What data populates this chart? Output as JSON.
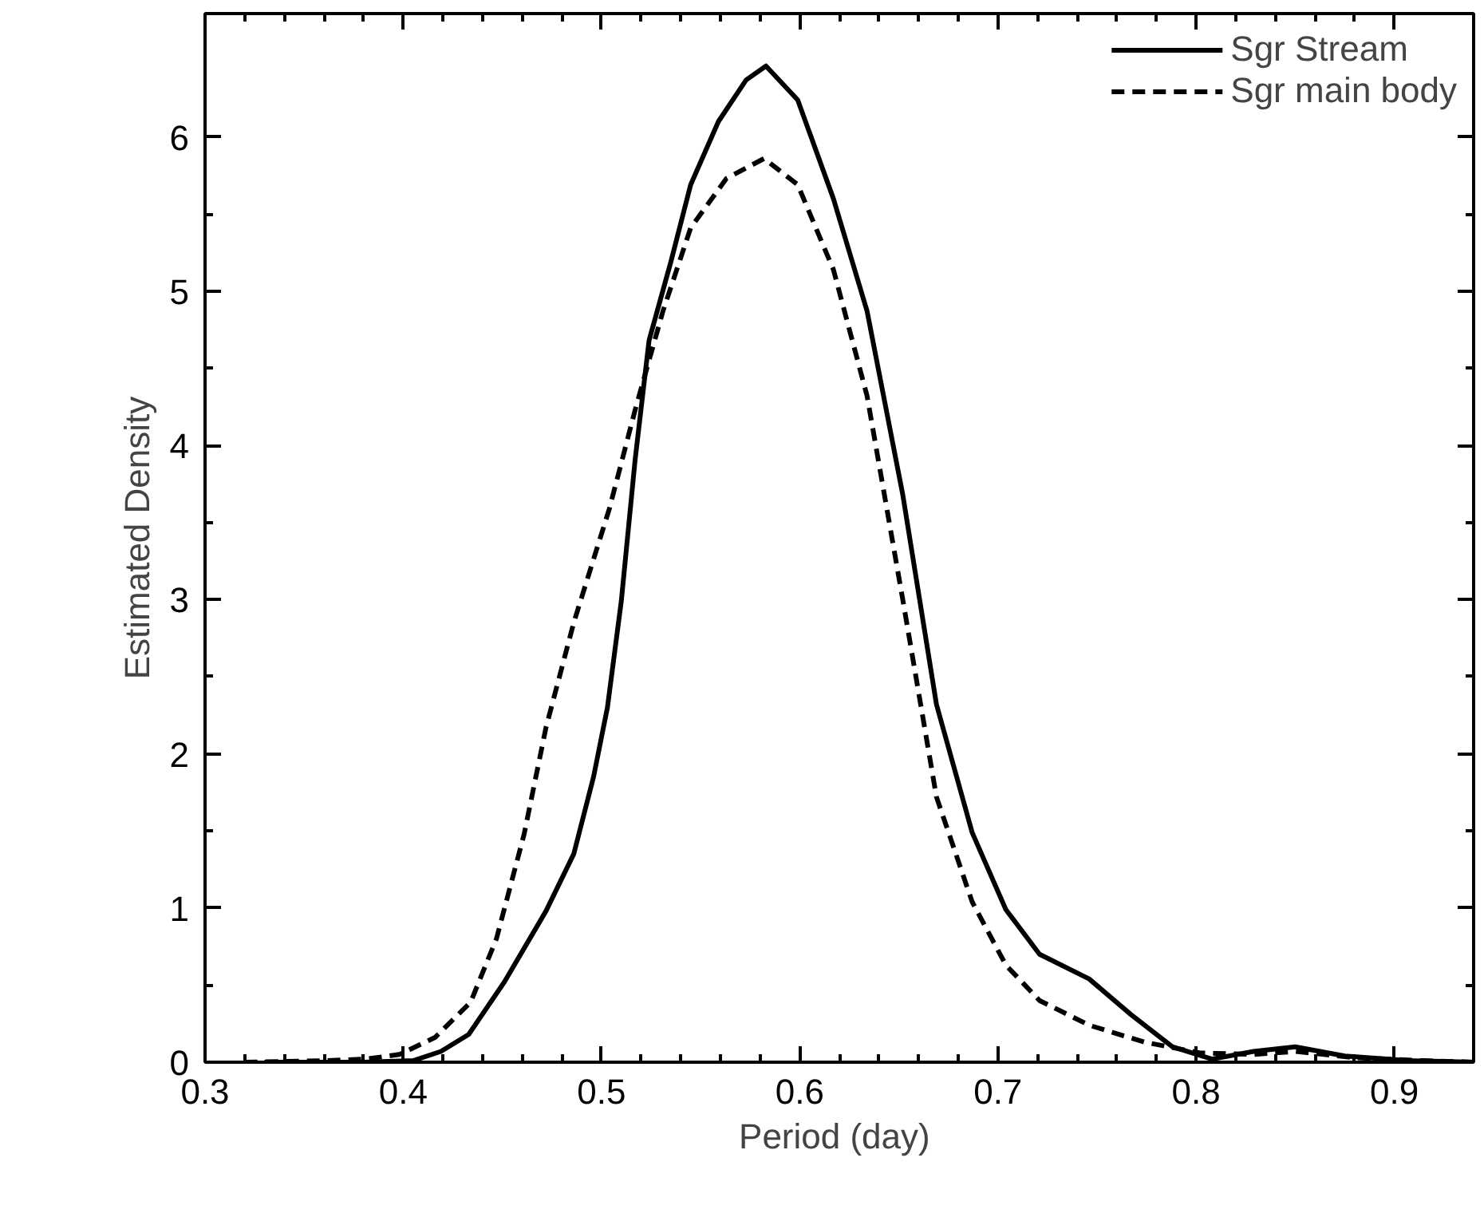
{
  "chart_data": {
    "type": "line",
    "xlabel": "Period  (day)",
    "ylabel": "Estimated Density",
    "xlim": [
      0.3,
      0.94
    ],
    "ylim": [
      0,
      6.8
    ],
    "xticks": [
      0.3,
      0.4,
      0.5,
      0.6,
      0.7,
      0.8,
      0.9
    ],
    "yticks": [
      0,
      1,
      2,
      3,
      4,
      5,
      6
    ],
    "grid": false,
    "legend": "top right",
    "series": [
      {
        "name": "Sgr Stream",
        "color": "#000000",
        "line_style": "solid",
        "x": [
          0.33,
          0.38,
          0.405,
          0.419,
          0.433,
          0.451,
          0.472,
          0.486,
          0.496,
          0.503,
          0.51,
          0.517,
          0.524,
          0.535,
          0.545,
          0.559,
          0.573,
          0.583,
          0.599,
          0.617,
          0.634,
          0.652,
          0.669,
          0.687,
          0.704,
          0.721,
          0.746,
          0.767,
          0.788,
          0.808,
          0.829,
          0.85,
          0.875,
          0.907,
          0.94
        ],
        "values": [
          0,
          0,
          0.01,
          0.07,
          0.18,
          0.52,
          0.98,
          1.35,
          1.85,
          2.3,
          2.99,
          3.91,
          4.68,
          5.19,
          5.69,
          6.1,
          6.37,
          6.46,
          6.24,
          5.6,
          4.87,
          3.68,
          2.32,
          1.49,
          0.99,
          0.7,
          0.54,
          0.31,
          0.1,
          0.02,
          0.07,
          0.1,
          0.04,
          0.01,
          0
        ]
      },
      {
        "name": "Sgr main body",
        "color": "#000000",
        "line_style": "dashed",
        "x": [
          0.32,
          0.36,
          0.381,
          0.398,
          0.416,
          0.434,
          0.447,
          0.461,
          0.472,
          0.486,
          0.504,
          0.517,
          0.531,
          0.545,
          0.563,
          0.582,
          0.599,
          0.617,
          0.634,
          0.652,
          0.669,
          0.687,
          0.704,
          0.721,
          0.746,
          0.774,
          0.802,
          0.829,
          0.85,
          0.879,
          0.914,
          0.94
        ],
        "values": [
          0,
          0.01,
          0.02,
          0.05,
          0.16,
          0.39,
          0.8,
          1.48,
          2.17,
          2.85,
          3.59,
          4.23,
          4.87,
          5.41,
          5.73,
          5.86,
          5.69,
          5.14,
          4.32,
          3.0,
          1.72,
          1.04,
          0.63,
          0.4,
          0.24,
          0.13,
          0.06,
          0.05,
          0.07,
          0.03,
          0.01,
          0
        ]
      }
    ]
  }
}
